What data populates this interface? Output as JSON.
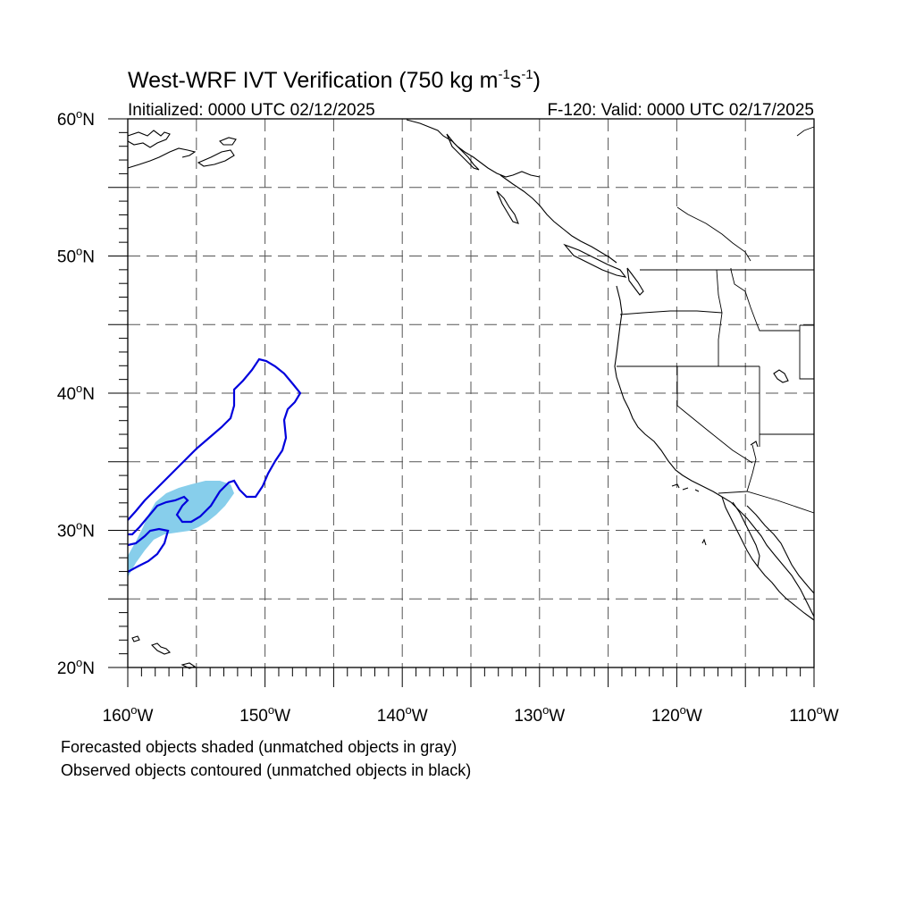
{
  "title_main": "West-WRF IVT Verification (750 kg m",
  "title_sup1": "-1",
  "title_mid": "s",
  "title_sup2": "-1",
  "title_end": ")",
  "subtitle_left": "Initialized: 0000 UTC 02/12/2025",
  "subtitle_right": "F-120: Valid: 0000 UTC 02/17/2025",
  "lat_labels": [
    {
      "deg": "60",
      "hemi": "N",
      "value": 60
    },
    {
      "deg": "50",
      "hemi": "N",
      "value": 50
    },
    {
      "deg": "40",
      "hemi": "N",
      "value": 40
    },
    {
      "deg": "30",
      "hemi": "N",
      "value": 30
    },
    {
      "deg": "20",
      "hemi": "N",
      "value": 20
    }
  ],
  "lon_labels": [
    {
      "deg": "160",
      "hemi": "W",
      "value": -160
    },
    {
      "deg": "150",
      "hemi": "W",
      "value": -150
    },
    {
      "deg": "140",
      "hemi": "W",
      "value": -140
    },
    {
      "deg": "130",
      "hemi": "W",
      "value": -130
    },
    {
      "deg": "120",
      "hemi": "W",
      "value": -120
    },
    {
      "deg": "110",
      "hemi": "W",
      "value": -110
    }
  ],
  "map": {
    "lon_range": [
      -160,
      -110
    ],
    "lat_range": [
      20,
      60
    ],
    "grid_spacing_deg": 5,
    "forecast_color": "#87ceeb",
    "observed_color": "#0000dd",
    "coast_color": "#000000"
  },
  "caption_line1": "Forecasted objects shaded (unmatched objects in gray)",
  "caption_line2": "Observed objects contoured (unmatched objects in black)"
}
